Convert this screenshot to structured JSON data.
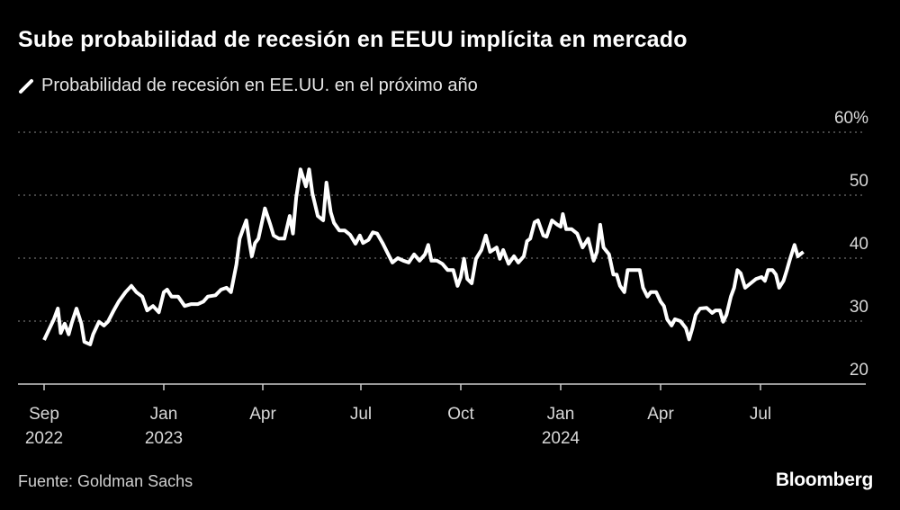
{
  "title": "Sube probabilidad de recesión en EEUU implícita en mercado",
  "source": "Fuente: Goldman Sachs",
  "logo": "Bloomberg",
  "colors": {
    "background": "#000000",
    "line": "#ffffff",
    "grid": "#8a8a8a",
    "text": "#ffffff"
  },
  "chart_data": {
    "type": "line",
    "title": "Sube probabilidad de recesión en EEUU implícita en mercado",
    "legend": {
      "placement": "top-left"
    },
    "grid": true,
    "ylim": [
      20,
      60
    ],
    "yticks": [
      {
        "value": 60,
        "label": "60%"
      },
      {
        "value": 50,
        "label": "50"
      },
      {
        "value": 40,
        "label": "40"
      },
      {
        "value": 30,
        "label": "30"
      },
      {
        "value": 20,
        "label": "20"
      }
    ],
    "xticks": [
      {
        "date": "2022-09-01",
        "label": "Sep",
        "year": "2022"
      },
      {
        "date": "2023-01-01",
        "label": "Jan",
        "year": "2023"
      },
      {
        "date": "2023-04-01",
        "label": "Apr",
        "year": ""
      },
      {
        "date": "2023-07-01",
        "label": "Jul",
        "year": ""
      },
      {
        "date": "2023-10-01",
        "label": "Oct",
        "year": ""
      },
      {
        "date": "2024-01-01",
        "label": "Jan",
        "year": "2024"
      },
      {
        "date": "2024-04-01",
        "label": "Apr",
        "year": ""
      },
      {
        "date": "2024-07-01",
        "label": "Jul",
        "year": ""
      }
    ],
    "series": [
      {
        "name": "Probabilidad de recesión en EE.UU. en el próximo año",
        "points": [
          [
            "2022-09-01",
            27.0
          ],
          [
            "2022-09-11",
            30.3
          ],
          [
            "2022-09-15",
            32.0
          ],
          [
            "2022-09-18",
            28.1
          ],
          [
            "2022-09-22",
            29.6
          ],
          [
            "2022-09-26",
            27.9
          ],
          [
            "2022-09-29",
            29.6
          ],
          [
            "2022-10-04",
            32.0
          ],
          [
            "2022-10-09",
            29.6
          ],
          [
            "2022-10-12",
            26.7
          ],
          [
            "2022-10-18",
            26.3
          ],
          [
            "2022-10-21",
            27.9
          ],
          [
            "2022-10-27",
            29.9
          ],
          [
            "2022-11-01",
            29.3
          ],
          [
            "2022-11-05",
            29.9
          ],
          [
            "2022-11-11",
            31.7
          ],
          [
            "2022-11-16",
            33.1
          ],
          [
            "2022-11-23",
            34.6
          ],
          [
            "2022-11-29",
            35.6
          ],
          [
            "2022-12-04",
            34.6
          ],
          [
            "2022-12-10",
            33.9
          ],
          [
            "2022-12-15",
            31.7
          ],
          [
            "2022-12-21",
            32.4
          ],
          [
            "2022-12-27",
            31.4
          ],
          [
            "2023-01-01",
            34.6
          ],
          [
            "2023-01-04",
            35.0
          ],
          [
            "2023-01-08",
            33.9
          ],
          [
            "2023-01-14",
            33.9
          ],
          [
            "2023-01-20",
            32.4
          ],
          [
            "2023-01-26",
            32.7
          ],
          [
            "2023-02-01",
            32.7
          ],
          [
            "2023-02-06",
            33.1
          ],
          [
            "2023-02-10",
            33.9
          ],
          [
            "2023-02-17",
            34.1
          ],
          [
            "2023-02-22",
            35.0
          ],
          [
            "2023-02-27",
            35.3
          ],
          [
            "2023-03-03",
            34.6
          ],
          [
            "2023-03-08",
            39.0
          ],
          [
            "2023-03-11",
            43.1
          ],
          [
            "2023-03-14",
            44.6
          ],
          [
            "2023-03-17",
            46.0
          ],
          [
            "2023-03-20",
            42.4
          ],
          [
            "2023-03-22",
            40.3
          ],
          [
            "2023-03-25",
            42.4
          ],
          [
            "2023-03-28",
            43.1
          ],
          [
            "2023-04-03",
            47.9
          ],
          [
            "2023-04-08",
            45.3
          ],
          [
            "2023-04-11",
            43.6
          ],
          [
            "2023-04-16",
            43.1
          ],
          [
            "2023-04-21",
            43.1
          ],
          [
            "2023-04-26",
            46.7
          ],
          [
            "2023-04-29",
            43.9
          ],
          [
            "2023-05-02",
            49.6
          ],
          [
            "2023-05-06",
            54.1
          ],
          [
            "2023-05-11",
            51.4
          ],
          [
            "2023-05-14",
            54.1
          ],
          [
            "2023-05-17",
            50.3
          ],
          [
            "2023-05-22",
            46.7
          ],
          [
            "2023-05-27",
            46.0
          ],
          [
            "2023-05-30",
            52.0
          ],
          [
            "2023-06-03",
            47.3
          ],
          [
            "2023-06-06",
            45.6
          ],
          [
            "2023-06-11",
            44.4
          ],
          [
            "2023-06-16",
            44.4
          ],
          [
            "2023-06-21",
            43.7
          ],
          [
            "2023-06-26",
            42.3
          ],
          [
            "2023-06-30",
            43.6
          ],
          [
            "2023-07-03",
            42.4
          ],
          [
            "2023-07-08",
            42.9
          ],
          [
            "2023-07-12",
            44.1
          ],
          [
            "2023-07-16",
            43.9
          ],
          [
            "2023-07-21",
            42.4
          ],
          [
            "2023-07-25",
            41.0
          ],
          [
            "2023-07-30",
            39.3
          ],
          [
            "2023-08-04",
            40.0
          ],
          [
            "2023-08-09",
            39.6
          ],
          [
            "2023-08-14",
            39.3
          ],
          [
            "2023-08-19",
            40.6
          ],
          [
            "2023-08-24",
            39.6
          ],
          [
            "2023-08-29",
            40.6
          ],
          [
            "2023-09-01",
            42.1
          ],
          [
            "2023-09-04",
            39.6
          ],
          [
            "2023-09-09",
            39.6
          ],
          [
            "2023-09-14",
            39.1
          ],
          [
            "2023-09-19",
            38.1
          ],
          [
            "2023-09-24",
            38.1
          ],
          [
            "2023-09-28",
            35.6
          ],
          [
            "2023-10-01",
            37.0
          ],
          [
            "2023-10-04",
            39.9
          ],
          [
            "2023-10-07",
            36.7
          ],
          [
            "2023-10-11",
            36.0
          ],
          [
            "2023-10-15",
            39.9
          ],
          [
            "2023-10-20",
            41.3
          ],
          [
            "2023-10-24",
            43.6
          ],
          [
            "2023-10-28",
            41.0
          ],
          [
            "2023-11-03",
            41.7
          ],
          [
            "2023-11-06",
            39.9
          ],
          [
            "2023-11-09",
            41.3
          ],
          [
            "2023-11-14",
            39.1
          ],
          [
            "2023-11-19",
            40.3
          ],
          [
            "2023-11-23",
            39.3
          ],
          [
            "2023-11-28",
            40.3
          ],
          [
            "2023-12-01",
            42.7
          ],
          [
            "2023-12-04",
            43.1
          ],
          [
            "2023-12-08",
            45.7
          ],
          [
            "2023-12-11",
            46.0
          ],
          [
            "2023-12-16",
            43.6
          ],
          [
            "2023-12-19",
            43.4
          ],
          [
            "2023-12-24",
            46.0
          ],
          [
            "2023-12-29",
            45.3
          ],
          [
            "2024-01-01",
            45.0
          ],
          [
            "2024-01-03",
            47.0
          ],
          [
            "2024-01-06",
            44.6
          ],
          [
            "2024-01-11",
            44.6
          ],
          [
            "2024-01-16",
            43.9
          ],
          [
            "2024-01-21",
            41.7
          ],
          [
            "2024-01-26",
            43.1
          ],
          [
            "2024-01-31",
            39.6
          ],
          [
            "2024-02-03",
            41.0
          ],
          [
            "2024-02-06",
            45.3
          ],
          [
            "2024-02-09",
            41.7
          ],
          [
            "2024-02-14",
            40.6
          ],
          [
            "2024-02-18",
            37.4
          ],
          [
            "2024-02-21",
            37.4
          ],
          [
            "2024-02-24",
            35.6
          ],
          [
            "2024-02-28",
            34.6
          ],
          [
            "2024-03-02",
            38.1
          ],
          [
            "2024-03-08",
            38.1
          ],
          [
            "2024-03-13",
            38.1
          ],
          [
            "2024-03-16",
            35.3
          ],
          [
            "2024-03-20",
            33.9
          ],
          [
            "2024-03-23",
            34.6
          ],
          [
            "2024-03-28",
            34.6
          ],
          [
            "2024-04-01",
            33.1
          ],
          [
            "2024-04-04",
            32.4
          ],
          [
            "2024-04-07",
            30.3
          ],
          [
            "2024-04-11",
            29.3
          ],
          [
            "2024-04-14",
            30.3
          ],
          [
            "2024-04-19",
            30.0
          ],
          [
            "2024-04-24",
            28.9
          ],
          [
            "2024-04-27",
            27.1
          ],
          [
            "2024-04-30",
            28.9
          ],
          [
            "2024-05-03",
            31.0
          ],
          [
            "2024-05-07",
            32.0
          ],
          [
            "2024-05-13",
            32.1
          ],
          [
            "2024-05-18",
            31.3
          ],
          [
            "2024-05-21",
            31.7
          ],
          [
            "2024-05-25",
            31.7
          ],
          [
            "2024-05-28",
            29.9
          ],
          [
            "2024-05-31",
            31.0
          ],
          [
            "2024-06-04",
            33.9
          ],
          [
            "2024-06-07",
            35.3
          ],
          [
            "2024-06-10",
            38.1
          ],
          [
            "2024-06-13",
            37.6
          ],
          [
            "2024-06-17",
            35.3
          ],
          [
            "2024-06-22",
            36.0
          ],
          [
            "2024-06-27",
            36.7
          ],
          [
            "2024-07-02",
            37.0
          ],
          [
            "2024-07-05",
            36.4
          ],
          [
            "2024-07-08",
            38.1
          ],
          [
            "2024-07-12",
            38.1
          ],
          [
            "2024-07-15",
            37.4
          ],
          [
            "2024-07-18",
            35.3
          ],
          [
            "2024-07-22",
            36.4
          ],
          [
            "2024-07-25",
            38.1
          ],
          [
            "2024-07-28",
            39.9
          ],
          [
            "2024-08-01",
            42.1
          ],
          [
            "2024-08-04",
            40.3
          ],
          [
            "2024-08-09",
            41.0
          ]
        ]
      }
    ]
  }
}
